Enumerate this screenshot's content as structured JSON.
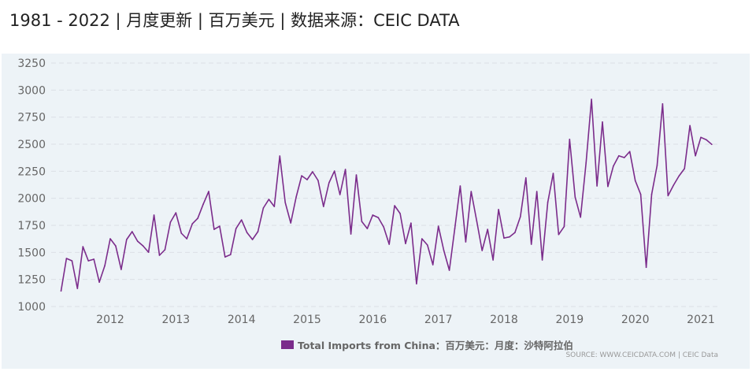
{
  "header": {
    "title": "1981 - 2022 | 月度更新 | 百万美元 | 数据来源：CEIC DATA"
  },
  "chart_data": {
    "type": "line",
    "title": "",
    "xlabel": "",
    "ylabel": "",
    "ylim": [
      1000,
      3250
    ],
    "yticks": [
      1000,
      1250,
      1500,
      1750,
      2000,
      2250,
      2500,
      2750,
      3000,
      3250
    ],
    "xticks": [
      "2012",
      "2013",
      "2014",
      "2015",
      "2016",
      "2017",
      "2018",
      "2019",
      "2020",
      "2021"
    ],
    "start": "2011-04",
    "end": "2021-03",
    "frequency": "monthly",
    "grid": true,
    "legend_placement": "bottom",
    "series": [
      {
        "name": "Total Imports from China：百万美元：月度：沙特阿拉伯",
        "color": "#7b2c8b",
        "values": [
          1143,
          1444,
          1422,
          1167,
          1553,
          1422,
          1437,
          1225,
          1378,
          1626,
          1560,
          1342,
          1619,
          1692,
          1604,
          1560,
          1502,
          1845,
          1473,
          1524,
          1779,
          1866,
          1677,
          1626,
          1764,
          1815,
          1946,
          2063,
          1713,
          1742,
          1458,
          1480,
          1720,
          1800,
          1684,
          1619,
          1692,
          1910,
          1990,
          1924,
          2391,
          1961,
          1772,
          2012,
          2208,
          2172,
          2245,
          2165,
          1924,
          2143,
          2252,
          2034,
          2267,
          1670,
          2216,
          1786,
          1720,
          1845,
          1822,
          1735,
          1575,
          1932,
          1859,
          1582,
          1771,
          1210,
          1626,
          1568,
          1386,
          1742,
          1517,
          1335,
          1720,
          2114,
          1597,
          2063,
          1793,
          1517,
          1713,
          1430,
          1896,
          1633,
          1643,
          1684,
          1830,
          2189,
          1575,
          2063,
          1430,
          1963,
          2230,
          1665,
          1738,
          2545,
          2012,
          1825,
          2327,
          2915,
          2114,
          2705,
          2109,
          2298,
          2393,
          2376,
          2432,
          2163,
          2036,
          1362,
          2036,
          2303,
          2873,
          2024,
          2121,
          2206,
          2274,
          2672,
          2393,
          2563,
          2541,
          2498
        ]
      }
    ],
    "source": "SOURCE: WWW.CEICDATA.COM | CEIC Data"
  }
}
